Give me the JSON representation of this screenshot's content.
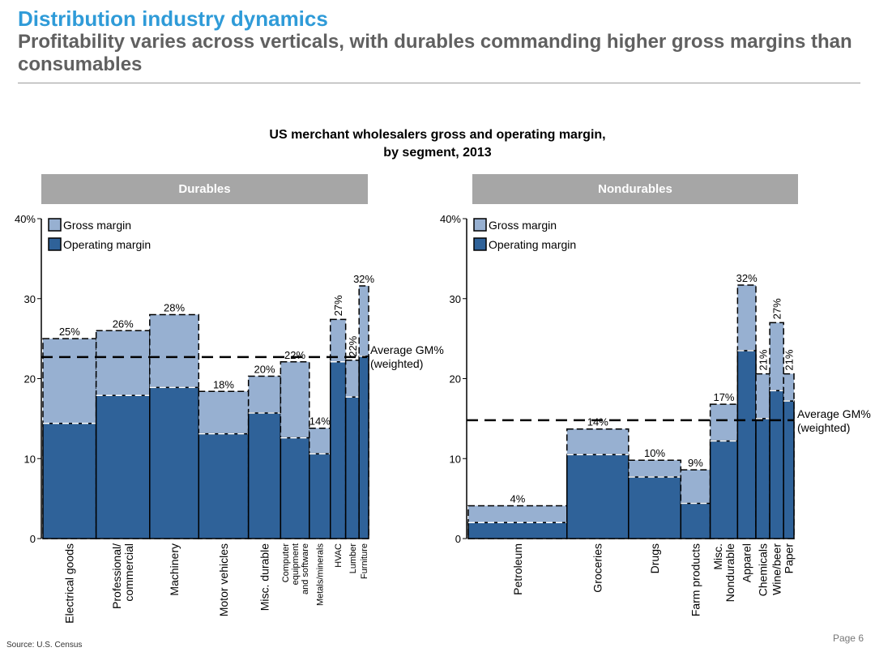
{
  "header": {
    "title": "Distribution industry dynamics",
    "subtitle": "Profitability varies across verticals, with durables commanding higher gross margins than consumables"
  },
  "footer": {
    "source": "Source: U.S. Census",
    "page": "Page 6"
  },
  "chart_data": {
    "type": "bar",
    "variant": "marimekko (variable-width bars)",
    "title": "US merchant wholesalers gross and operating margin, by segment, 2013",
    "title_lines": [
      "US merchant wholesalers gross and operating margin,",
      "by segment, 2013"
    ],
    "legend": [
      "Gross margin",
      "Operating margin"
    ],
    "legend_placement": "top-left",
    "y_ticks": [
      "40%",
      "30",
      "20",
      "10",
      "0"
    ],
    "ylim": [
      0,
      40
    ],
    "colors": {
      "gross": "#97b0d1",
      "operating": "#2f6299",
      "header_bg": "#a6a6a6",
      "title": "#2f9bd8",
      "subtitle": "#606060"
    },
    "panels": [
      {
        "name": "Durables",
        "average_label": "Average GM%\n(weighted)",
        "average_gm": 22.7,
        "segments": [
          {
            "label": "Electrical goods",
            "gross": 25,
            "operating": 14.4,
            "gm_label": "25%",
            "share": 13.9
          },
          {
            "label": "Professional/\ncommercial",
            "gross": 26,
            "operating": 17.9,
            "gm_label": "26%",
            "share": 14.0
          },
          {
            "label": "Machinery",
            "gross": 28,
            "operating": 18.9,
            "gm_label": "28%",
            "share": 12.8
          },
          {
            "label": "Motor vehicles",
            "gross": 18.4,
            "operating": 13.1,
            "gm_label": "18%",
            "share": 13.0
          },
          {
            "label": "Misc. durable",
            "gross": 20.3,
            "operating": 15.7,
            "gm_label": "20%",
            "share": 8.4
          },
          {
            "label": "Computer\nequipment\nand software",
            "gross": 22.1,
            "operating": 12.6,
            "gm_label": "22%",
            "share": 7.5
          },
          {
            "label": "Metals/minerals",
            "gross": 13.8,
            "operating": 10.6,
            "gm_label": "14%",
            "share": 5.5
          },
          {
            "label": "HVAC",
            "gross": 27.4,
            "operating": 22.1,
            "gm_label": "27%",
            "share": 4.0
          },
          {
            "label": "Lumber",
            "gross": 22.3,
            "operating": 17.7,
            "gm_label": "22%",
            "share": 3.5
          },
          {
            "label": "Furniture",
            "gross": 31.6,
            "operating": 22.8,
            "gm_label": "32%",
            "share": 2.5
          }
        ]
      },
      {
        "name": "Nondurables",
        "average_label": "Average GM%\n(weighted)",
        "average_gm": 14.8,
        "segments": [
          {
            "label": "Petroleum",
            "gross": 4.1,
            "operating": 2,
            "gm_label": "4%",
            "share": 28.5
          },
          {
            "label": "Groceries",
            "gross": 13.7,
            "operating": 10.5,
            "gm_label": "14%",
            "share": 17.8
          },
          {
            "label": "Drugs",
            "gross": 9.8,
            "operating": 7.7,
            "gm_label": "10%",
            "share": 15.1
          },
          {
            "label": "Farm products",
            "gross": 8.6,
            "operating": 4.4,
            "gm_label": "9%",
            "share": 8.5
          },
          {
            "label": "Misc.\nNondurable",
            "gross": 16.8,
            "operating": 12.2,
            "gm_label": "17%",
            "share": 7.9
          },
          {
            "label": "Apparel",
            "gross": 31.7,
            "operating": 23.5,
            "gm_label": "32%",
            "share": 5.3
          },
          {
            "label": "Chemicals",
            "gross": 20.6,
            "operating": 15,
            "gm_label": "21%",
            "share": 4.0
          },
          {
            "label": "Wine/beer",
            "gross": 27,
            "operating": 18.5,
            "gm_label": "27%",
            "share": 4.0
          },
          {
            "label": "Paper",
            "gross": 20.6,
            "operating": 17.2,
            "gm_label": "21%",
            "share": 3.0
          }
        ]
      }
    ]
  }
}
